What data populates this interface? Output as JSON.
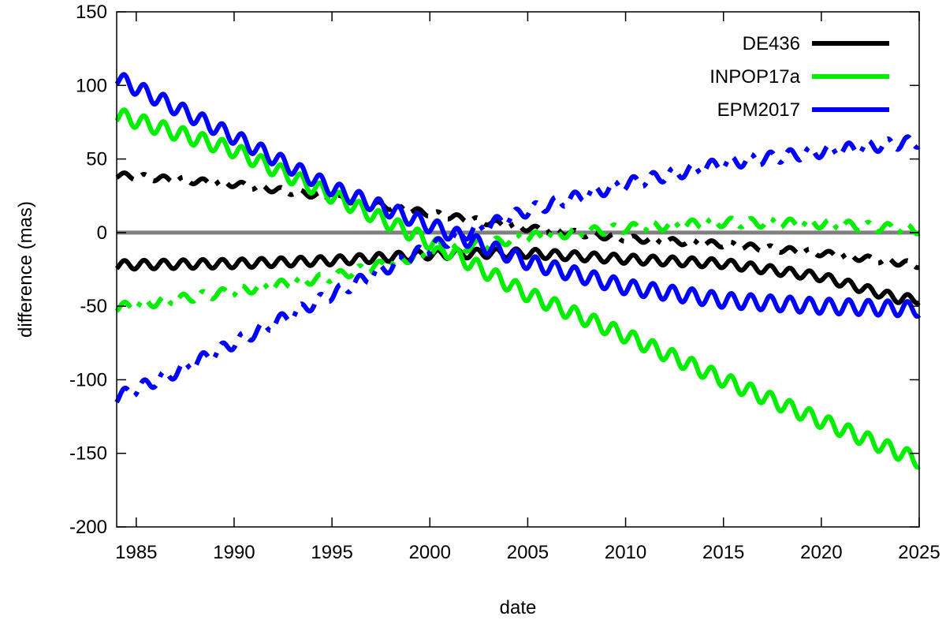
{
  "chart_data": {
    "type": "line",
    "title": "",
    "xlabel": "date",
    "ylabel": "difference (mas)",
    "xlim": [
      1984,
      2025
    ],
    "ylim": [
      -200,
      150
    ],
    "xticks": [
      1985,
      1990,
      1995,
      2000,
      2005,
      2010,
      2015,
      2020,
      2025
    ],
    "yticks": [
      -200,
      -150,
      -100,
      -50,
      0,
      50,
      100,
      150
    ],
    "legend_position": "top-right",
    "legend": [
      {
        "label": "DE436",
        "color": "#000000"
      },
      {
        "label": "INPOP17a",
        "color": "#00ee00"
      },
      {
        "label": "EPM2017",
        "color": "#0000ff"
      }
    ],
    "zero_line": {
      "y": 0,
      "color": "#808080"
    },
    "series": [
      {
        "name": "DE436",
        "style": "solid",
        "color": "#000000",
        "osc_amp": 3,
        "osc_period": 1,
        "x": [
          1984,
          1990,
          1995,
          2000,
          2003,
          2005,
          2010,
          2015,
          2020,
          2024,
          2025
        ],
        "y": [
          -22,
          -21,
          -19,
          -15,
          -14,
          -14,
          -18,
          -21,
          -30,
          -45,
          -45
        ]
      },
      {
        "name": "DE436",
        "style": "dashdot",
        "color": "#000000",
        "osc_amp": 2,
        "osc_period": 1,
        "x": [
          1984,
          1990,
          1995,
          2000,
          2005,
          2010,
          2015,
          2020,
          2025
        ],
        "y": [
          39,
          33,
          24,
          13,
          3,
          -4,
          -8,
          -14,
          -22
        ]
      },
      {
        "name": "INPOP17a",
        "style": "solid",
        "color": "#00ee00",
        "osc_amp": 5,
        "osc_period": 1,
        "x": [
          1984,
          1990,
          1995,
          1999,
          2001,
          2005,
          2010,
          2015,
          2020,
          2025
        ],
        "y": [
          80,
          56,
          25,
          0,
          -13,
          -42,
          -70,
          -100,
          -128,
          -155
        ]
      },
      {
        "name": "INPOP17a",
        "style": "dashdot",
        "color": "#00ee00",
        "osc_amp": 3,
        "osc_period": 1,
        "x": [
          1984,
          1990,
          1995,
          2000,
          2005,
          2010,
          2015,
          2020,
          2025
        ],
        "y": [
          -51,
          -40,
          -30,
          -14,
          -3,
          3,
          7,
          6,
          2
        ]
      },
      {
        "name": "EPM2017",
        "style": "solid",
        "color": "#0000ff",
        "osc_amp": 5,
        "osc_period": 1,
        "x": [
          1984,
          1990,
          1995,
          2000,
          2002,
          2005,
          2010,
          2015,
          2020,
          2025
        ],
        "y": [
          105,
          65,
          30,
          5,
          -5,
          -20,
          -37,
          -46,
          -50,
          -52
        ]
      },
      {
        "name": "EPM2017",
        "style": "dashdot",
        "color": "#0000ff",
        "osc_amp": 4,
        "osc_period": 1,
        "x": [
          1984,
          1987,
          1990,
          1995,
          2000,
          2005,
          2010,
          2015,
          2020,
          2025
        ],
        "y": [
          -112,
          -95,
          -75,
          -42,
          -10,
          15,
          33,
          47,
          55,
          62
        ]
      }
    ]
  }
}
